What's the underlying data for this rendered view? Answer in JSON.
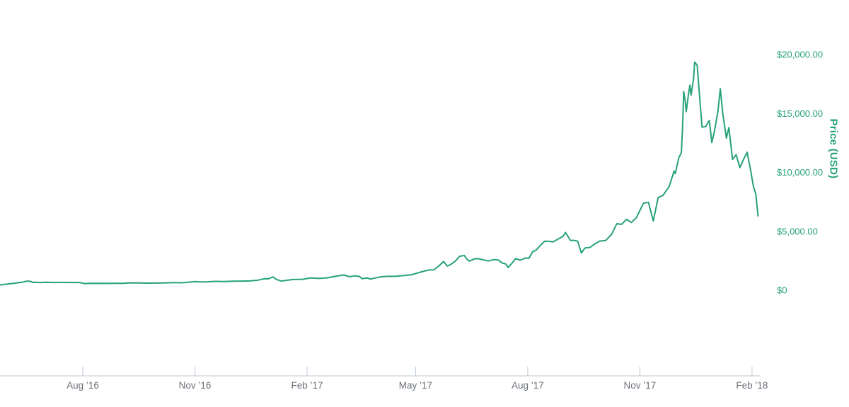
{
  "chart_data": {
    "type": "line",
    "ylabel": "Price (USD)",
    "ylim": [
      0,
      20000
    ],
    "grid": false,
    "legend": "none",
    "colors": {
      "line": "#26a17b",
      "y_axis_text": "#26a17b",
      "x_axis_text": "#6b7077",
      "axis_line": "#ccd3dc"
    },
    "y_ticks": [
      {
        "value": 0,
        "label": "$0"
      },
      {
        "value": 5000,
        "label": "$5,000.00"
      },
      {
        "value": 10000,
        "label": "$10,000.00"
      },
      {
        "value": 15000,
        "label": "$15,000.00"
      },
      {
        "value": 20000,
        "label": "$20,000.00"
      }
    ],
    "x_ticks": [
      {
        "date": "2016-08-01",
        "label": "Aug ’16"
      },
      {
        "date": "2016-11-01",
        "label": "Nov ’16"
      },
      {
        "date": "2017-02-01",
        "label": "Feb ’17"
      },
      {
        "date": "2017-05-01",
        "label": "May ’17"
      },
      {
        "date": "2017-08-01",
        "label": "Aug ’17"
      },
      {
        "date": "2017-11-01",
        "label": "Nov ’17"
      },
      {
        "date": "2018-02-01",
        "label": "Feb ’18"
      }
    ],
    "series": [
      {
        "name": "Price (USD)",
        "points": [
          [
            "2016-05-25",
            450
          ],
          [
            "2016-06-01",
            537
          ],
          [
            "2016-06-05",
            575
          ],
          [
            "2016-06-12",
            670
          ],
          [
            "2016-06-16",
            766
          ],
          [
            "2016-06-19",
            755
          ],
          [
            "2016-06-21",
            665
          ],
          [
            "2016-06-24",
            675
          ],
          [
            "2016-06-27",
            650
          ],
          [
            "2016-07-01",
            678
          ],
          [
            "2016-07-08",
            655
          ],
          [
            "2016-07-15",
            663
          ],
          [
            "2016-07-22",
            655
          ],
          [
            "2016-07-29",
            655
          ],
          [
            "2016-08-01",
            607
          ],
          [
            "2016-08-02",
            550
          ],
          [
            "2016-08-05",
            575
          ],
          [
            "2016-08-12",
            590
          ],
          [
            "2016-08-19",
            575
          ],
          [
            "2016-08-26",
            580
          ],
          [
            "2016-09-02",
            575
          ],
          [
            "2016-09-09",
            623
          ],
          [
            "2016-09-16",
            610
          ],
          [
            "2016-09-23",
            602
          ],
          [
            "2016-09-30",
            608
          ],
          [
            "2016-10-07",
            618
          ],
          [
            "2016-10-14",
            640
          ],
          [
            "2016-10-21",
            630
          ],
          [
            "2016-10-28",
            688
          ],
          [
            "2016-11-01",
            730
          ],
          [
            "2016-11-04",
            705
          ],
          [
            "2016-11-11",
            715
          ],
          [
            "2016-11-18",
            750
          ],
          [
            "2016-11-25",
            738
          ],
          [
            "2016-12-02",
            770
          ],
          [
            "2016-12-09",
            772
          ],
          [
            "2016-12-16",
            785
          ],
          [
            "2016-12-23",
            860
          ],
          [
            "2016-12-28",
            975
          ],
          [
            "2016-12-31",
            963
          ],
          [
            "2017-01-04",
            1130
          ],
          [
            "2017-01-07",
            905
          ],
          [
            "2017-01-11",
            777
          ],
          [
            "2017-01-14",
            825
          ],
          [
            "2017-01-21",
            920
          ],
          [
            "2017-01-28",
            920
          ],
          [
            "2017-02-04",
            1045
          ],
          [
            "2017-02-11",
            1000
          ],
          [
            "2017-02-18",
            1055
          ],
          [
            "2017-02-24",
            1180
          ],
          [
            "2017-03-03",
            1290
          ],
          [
            "2017-03-08",
            1150
          ],
          [
            "2017-03-12",
            1220
          ],
          [
            "2017-03-16",
            1170
          ],
          [
            "2017-03-18",
            970
          ],
          [
            "2017-03-22",
            1040
          ],
          [
            "2017-03-25",
            940
          ],
          [
            "2017-03-29",
            1040
          ],
          [
            "2017-04-03",
            1140
          ],
          [
            "2017-04-08",
            1180
          ],
          [
            "2017-04-14",
            1175
          ],
          [
            "2017-04-21",
            1240
          ],
          [
            "2017-04-28",
            1320
          ],
          [
            "2017-05-05",
            1540
          ],
          [
            "2017-05-12",
            1720
          ],
          [
            "2017-05-16",
            1730
          ],
          [
            "2017-05-20",
            2040
          ],
          [
            "2017-05-24",
            2440
          ],
          [
            "2017-05-27",
            2050
          ],
          [
            "2017-05-30",
            2190
          ],
          [
            "2017-06-03",
            2500
          ],
          [
            "2017-06-06",
            2870
          ],
          [
            "2017-06-10",
            2950
          ],
          [
            "2017-06-12",
            2650
          ],
          [
            "2017-06-14",
            2470
          ],
          [
            "2017-06-18",
            2650
          ],
          [
            "2017-06-21",
            2680
          ],
          [
            "2017-06-25",
            2590
          ],
          [
            "2017-06-30",
            2480
          ],
          [
            "2017-07-04",
            2600
          ],
          [
            "2017-07-08",
            2560
          ],
          [
            "2017-07-11",
            2320
          ],
          [
            "2017-07-14",
            2230
          ],
          [
            "2017-07-16",
            1930
          ],
          [
            "2017-07-19",
            2280
          ],
          [
            "2017-07-22",
            2670
          ],
          [
            "2017-07-26",
            2550
          ],
          [
            "2017-07-30",
            2730
          ],
          [
            "2017-08-02",
            2710
          ],
          [
            "2017-08-05",
            3260
          ],
          [
            "2017-08-08",
            3420
          ],
          [
            "2017-08-12",
            3870
          ],
          [
            "2017-08-15",
            4160
          ],
          [
            "2017-08-18",
            4150
          ],
          [
            "2017-08-22",
            4100
          ],
          [
            "2017-08-26",
            4350
          ],
          [
            "2017-08-30",
            4570
          ],
          [
            "2017-09-01",
            4900
          ],
          [
            "2017-09-05",
            4230
          ],
          [
            "2017-09-08",
            4230
          ],
          [
            "2017-09-11",
            4160
          ],
          [
            "2017-09-14",
            3160
          ],
          [
            "2017-09-17",
            3580
          ],
          [
            "2017-09-21",
            3630
          ],
          [
            "2017-09-25",
            3930
          ],
          [
            "2017-09-29",
            4170
          ],
          [
            "2017-10-04",
            4220
          ],
          [
            "2017-10-09",
            4770
          ],
          [
            "2017-10-13",
            5640
          ],
          [
            "2017-10-17",
            5590
          ],
          [
            "2017-10-21",
            6010
          ],
          [
            "2017-10-25",
            5750
          ],
          [
            "2017-10-29",
            6130
          ],
          [
            "2017-11-01",
            6750
          ],
          [
            "2017-11-04",
            7380
          ],
          [
            "2017-11-08",
            7460
          ],
          [
            "2017-11-12",
            5880
          ],
          [
            "2017-11-16",
            7870
          ],
          [
            "2017-11-20",
            8040
          ],
          [
            "2017-11-25",
            8790
          ],
          [
            "2017-11-29",
            10100
          ],
          [
            "2017-11-30",
            9900
          ],
          [
            "2017-12-03",
            11250
          ],
          [
            "2017-12-05",
            11650
          ],
          [
            "2017-12-06",
            13750
          ],
          [
            "2017-12-07",
            16850
          ],
          [
            "2017-12-08",
            16200
          ],
          [
            "2017-12-09",
            15150
          ],
          [
            "2017-12-11",
            16700
          ],
          [
            "2017-12-12",
            17400
          ],
          [
            "2017-12-13",
            16550
          ],
          [
            "2017-12-15",
            17900
          ],
          [
            "2017-12-16",
            19350
          ],
          [
            "2017-12-18",
            19100
          ],
          [
            "2017-12-20",
            16460
          ],
          [
            "2017-12-22",
            13830
          ],
          [
            "2017-12-25",
            13900
          ],
          [
            "2017-12-28",
            14400
          ],
          [
            "2017-12-30",
            12530
          ],
          [
            "2018-01-01",
            13400
          ],
          [
            "2018-01-04",
            15150
          ],
          [
            "2018-01-06",
            17100
          ],
          [
            "2018-01-08",
            15000
          ],
          [
            "2018-01-11",
            12900
          ],
          [
            "2018-01-13",
            13800
          ],
          [
            "2018-01-16",
            11100
          ],
          [
            "2018-01-19",
            11500
          ],
          [
            "2018-01-22",
            10400
          ],
          [
            "2018-01-25",
            11100
          ],
          [
            "2018-01-28",
            11700
          ],
          [
            "2018-01-31",
            10100
          ],
          [
            "2018-02-02",
            8850
          ],
          [
            "2018-02-04",
            8200
          ],
          [
            "2018-02-06",
            6300
          ]
        ]
      }
    ]
  }
}
